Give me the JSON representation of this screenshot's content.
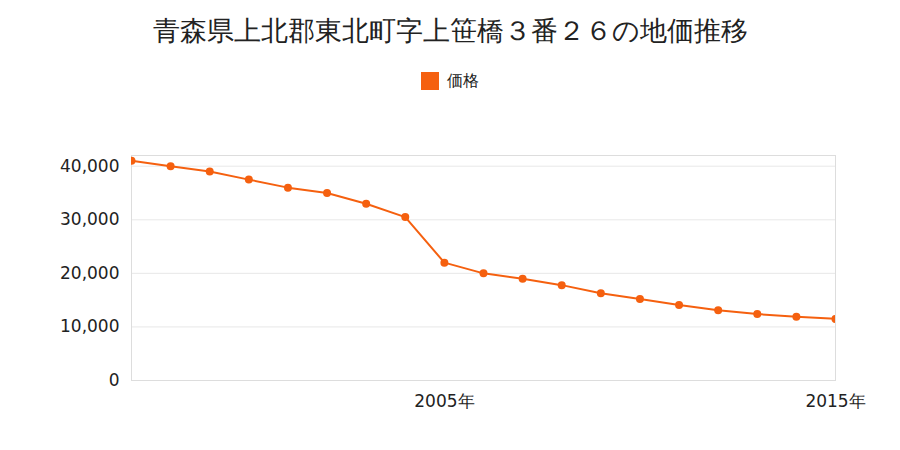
{
  "chart_data": {
    "type": "line",
    "title": "青森県上北郡東北町字上笹橋３番２６の地価推移",
    "x": [
      1997,
      1998,
      1999,
      2000,
      2001,
      2002,
      2003,
      2004,
      2005,
      2006,
      2007,
      2008,
      2009,
      2010,
      2011,
      2012,
      2013,
      2014,
      2015
    ],
    "series": [
      {
        "name": "価格",
        "color": "#f5600f",
        "marker": "circle",
        "values": [
          41000,
          40000,
          39000,
          37500,
          36000,
          35000,
          33000,
          30500,
          22000,
          20000,
          19000,
          17800,
          16300,
          15200,
          14100,
          13100,
          12400,
          11900,
          11500
        ]
      }
    ],
    "xlim": [
      1997,
      2015
    ],
    "xticks": [
      {
        "value": 2005,
        "label": "2005年"
      },
      {
        "value": 2015,
        "label": "2015年"
      }
    ],
    "ylim": [
      0,
      42000
    ],
    "yticks": [
      0,
      {
        "value": 10000,
        "label": "10,000"
      },
      {
        "value": 20000,
        "label": "20,000"
      },
      {
        "value": 30000,
        "label": "30,000"
      },
      {
        "value": 40000,
        "label": "40,000"
      }
    ],
    "grid": true,
    "legend": "top"
  }
}
